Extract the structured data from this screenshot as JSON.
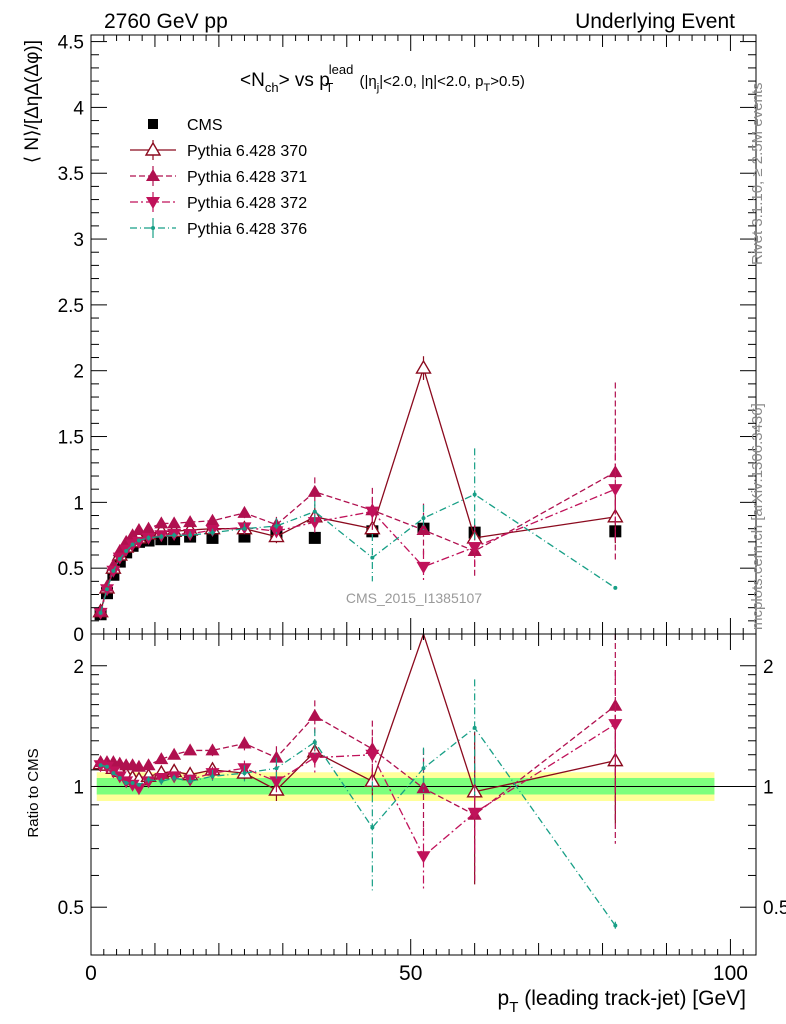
{
  "header": {
    "left": "2760 GeV pp",
    "right": "Underlying Event",
    "side_top": "Rivet 3.1.10, ≥ 2.5M events",
    "side_bottom": "mcplots.cern.ch [arXiv:1306.3436]",
    "watermark": "CMS_2015_I1385107"
  },
  "chart_data": [
    {
      "type": "line",
      "title_parts": {
        "a": "<N",
        "a_sub": "ch",
        "b": "> vs p",
        "b_sup": "lead",
        "b_sub": "T",
        "c": " (|η",
        "c_sub": "j",
        "d": "|<2.0, |η|<2.0, p",
        "d_sub": "T",
        "e": ">0.5)"
      },
      "ylabel": "⟨ N⟩/[ΔηΔ(Δφ)]",
      "xlabel": "p_T (leading track-jet) [GeV]",
      "xlabel_parts": {
        "p": "p",
        "sub": "T",
        "rest": " (leading track-jet) [GeV]"
      },
      "xlim": [
        0,
        104
      ],
      "ylim": [
        0,
        4.55
      ],
      "yticks": [
        "0",
        "0.5",
        "1",
        "1.5",
        "2",
        "2.5",
        "3",
        "3.5",
        "4",
        "4.5"
      ],
      "xticks": [
        "0",
        "50",
        "100"
      ],
      "x": [
        1.5,
        2.5,
        3.5,
        4.5,
        5.5,
        6.5,
        7.5,
        9.0,
        11.0,
        13.0,
        15.5,
        19.0,
        24.0,
        29.0,
        35.0,
        44.0,
        52.0,
        60.0,
        82.0
      ],
      "series": [
        {
          "name": "CMS",
          "color": "#000000",
          "marker": "square",
          "values": [
            0.15,
            0.31,
            0.45,
            0.55,
            0.62,
            0.67,
            0.7,
            0.71,
            0.72,
            0.72,
            0.74,
            0.73,
            0.74,
            0.75,
            0.73,
            0.78,
            0.8,
            0.77,
            0.78
          ],
          "err": [
            0.02,
            0.02,
            0.02,
            0.02,
            0.02,
            0.02,
            0.02,
            0.02,
            0.02,
            0.02,
            0.02,
            0.02,
            0.02,
            0.02,
            0.02,
            0.02,
            0.02,
            0.02,
            0.02
          ]
        },
        {
          "name": "Pythia 6.428 370",
          "color": "#8b0a1e",
          "marker": "triangle-open",
          "dash": "",
          "values": [
            0.17,
            0.35,
            0.5,
            0.6,
            0.66,
            0.7,
            0.73,
            0.76,
            0.78,
            0.78,
            0.79,
            0.8,
            0.8,
            0.74,
            0.89,
            0.8,
            2.02,
            0.73,
            0.89
          ],
          "err": [
            0.01,
            0.01,
            0.01,
            0.01,
            0.01,
            0.01,
            0.01,
            0.01,
            0.01,
            0.02,
            0.02,
            0.02,
            0.03,
            0.05,
            0.07,
            0.06,
            0.09,
            0.1,
            0.2
          ]
        },
        {
          "name": "Pythia 6.428 371",
          "color": "#b0104f",
          "marker": "triangle-up",
          "dash": "6,3",
          "values": [
            0.17,
            0.36,
            0.52,
            0.63,
            0.7,
            0.75,
            0.79,
            0.8,
            0.84,
            0.84,
            0.85,
            0.86,
            0.92,
            0.83,
            1.08,
            0.94,
            0.79,
            0.63,
            1.23
          ],
          "err": [
            0.01,
            0.01,
            0.01,
            0.01,
            0.01,
            0.01,
            0.01,
            0.02,
            0.02,
            0.02,
            0.03,
            0.03,
            0.04,
            0.06,
            0.11,
            0.17,
            0.2,
            0.2,
            0.68
          ]
        },
        {
          "name": "Pythia 6.428 372",
          "color": "#c0125a",
          "marker": "triangle-down",
          "dash": "8,3,2,3",
          "values": [
            0.16,
            0.34,
            0.48,
            0.58,
            0.64,
            0.68,
            0.7,
            0.73,
            0.75,
            0.76,
            0.76,
            0.79,
            0.81,
            0.78,
            0.85,
            0.93,
            0.51,
            0.66,
            1.1
          ],
          "err": [
            0.01,
            0.01,
            0.01,
            0.01,
            0.01,
            0.01,
            0.01,
            0.02,
            0.02,
            0.02,
            0.03,
            0.03,
            0.04,
            0.06,
            0.08,
            0.1,
            0.12,
            0.15,
            0.4
          ]
        },
        {
          "name": "Pythia 6.428 376",
          "color": "#179f86",
          "marker": "dot",
          "dash": "7,3,1,3",
          "values": [
            0.16,
            0.34,
            0.48,
            0.57,
            0.63,
            0.68,
            0.71,
            0.73,
            0.74,
            0.75,
            0.75,
            0.77,
            0.8,
            0.82,
            0.93,
            0.58,
            0.88,
            1.06,
            0.35
          ],
          "err": [
            0.01,
            0.01,
            0.01,
            0.01,
            0.01,
            0.01,
            0.01,
            0.02,
            0.02,
            0.02,
            0.03,
            0.03,
            0.04,
            0.06,
            0.08,
            0.18,
            0.1,
            0.35,
            0.01
          ]
        }
      ],
      "legend_position": "top-left"
    },
    {
      "type": "line",
      "ylabel": "Ratio to CMS",
      "ylim": [
        0.38,
        2.4
      ],
      "yticks": [
        "0.5",
        "1",
        "2"
      ],
      "band_colors": {
        "outer": "#ffff99",
        "inner": "#7dff7d"
      },
      "x": [
        1.5,
        2.5,
        3.5,
        4.5,
        5.5,
        6.5,
        7.5,
        9.0,
        11.0,
        13.0,
        15.5,
        19.0,
        24.0,
        29.0,
        35.0,
        44.0,
        52.0,
        60.0,
        82.0
      ],
      "series": [
        {
          "name": "Pythia 6.428 370",
          "values": [
            1.14,
            1.13,
            1.11,
            1.09,
            1.07,
            1.05,
            1.04,
            1.06,
            1.08,
            1.09,
            1.07,
            1.1,
            1.08,
            0.98,
            1.22,
            1.03,
            2.53,
            0.97,
            1.16
          ],
          "err": [
            0.01,
            0.01,
            0.01,
            0.01,
            0.01,
            0.01,
            0.01,
            0.01,
            0.02,
            0.02,
            0.02,
            0.03,
            0.04,
            0.06,
            0.09,
            0.08,
            0.1,
            0.4,
            0.35
          ]
        },
        {
          "name": "Pythia 6.428 371",
          "values": [
            1.15,
            1.15,
            1.15,
            1.14,
            1.13,
            1.13,
            1.12,
            1.13,
            1.17,
            1.2,
            1.23,
            1.23,
            1.28,
            1.18,
            1.5,
            1.24,
            0.99,
            0.85,
            1.59
          ],
          "err": [
            0.01,
            0.01,
            0.01,
            0.01,
            0.01,
            0.01,
            0.01,
            0.02,
            0.02,
            0.03,
            0.03,
            0.04,
            0.05,
            0.08,
            0.14,
            0.22,
            0.25,
            0.27,
            0.87
          ]
        },
        {
          "name": "Pythia 6.428 372",
          "values": [
            1.13,
            1.12,
            1.09,
            1.06,
            1.03,
            1.01,
            0.99,
            1.03,
            1.05,
            1.06,
            1.04,
            1.08,
            1.11,
            1.03,
            1.18,
            1.2,
            0.67,
            0.86,
            1.43
          ],
          "err": [
            0.01,
            0.01,
            0.01,
            0.01,
            0.01,
            0.01,
            0.01,
            0.02,
            0.02,
            0.02,
            0.03,
            0.04,
            0.05,
            0.08,
            0.1,
            0.13,
            0.12,
            0.18,
            0.5
          ]
        },
        {
          "name": "Pythia 6.428 376",
          "values": [
            1.13,
            1.12,
            1.08,
            1.05,
            1.02,
            1.02,
            1.01,
            1.04,
            1.03,
            1.05,
            1.03,
            1.06,
            1.08,
            1.11,
            1.29,
            0.79,
            1.11,
            1.4,
            0.45
          ],
          "err": [
            0.01,
            0.01,
            0.01,
            0.01,
            0.01,
            0.01,
            0.01,
            0.02,
            0.02,
            0.02,
            0.03,
            0.04,
            0.05,
            0.07,
            0.1,
            0.24,
            0.14,
            0.45,
            0.01
          ]
        }
      ]
    }
  ]
}
